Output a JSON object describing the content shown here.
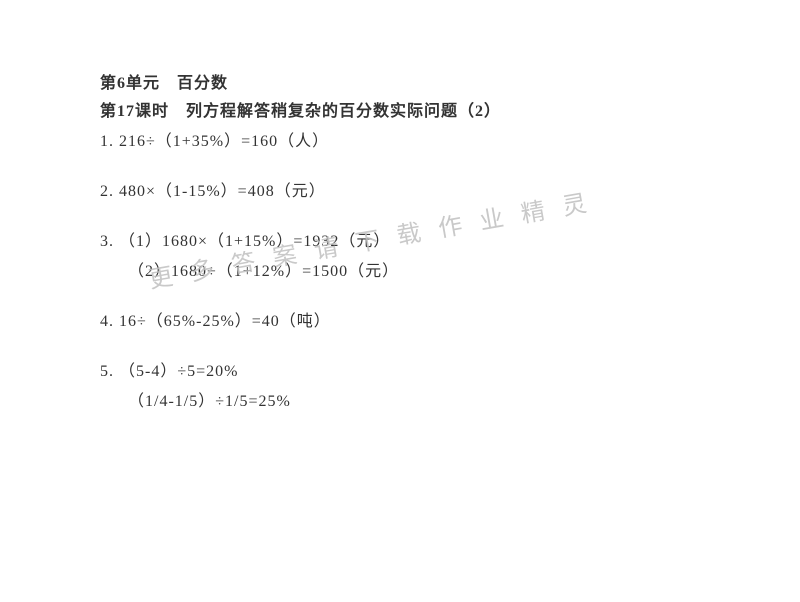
{
  "title": {
    "unit": "第6单元　百分数",
    "lesson": "第17课时　列方程解答稍复杂的百分数实际问题（2）"
  },
  "problems": {
    "p1": "1.  216÷（1+35%）=160（人）",
    "p2": "2.  480×（1-15%）=408（元）",
    "p3a": "3. （1）1680×（1+15%）=1932（元）",
    "p3b": "（2）1680÷（1+12%）=1500（元）",
    "p4": "4. 16÷（65%-25%）=40（吨）",
    "p5a": "5. （5-4）÷5=20%",
    "p5b": "（1/4-1/5）÷1/5=25%"
  },
  "watermark": {
    "text": "更多答案请下载作业精灵"
  },
  "styling": {
    "background_color": "#ffffff",
    "text_color": "#333333",
    "watermark_color": "#c0c0c0",
    "font_size_body": 16,
    "font_size_watermark": 24,
    "watermark_rotation_deg": -10,
    "line_height": 28
  }
}
